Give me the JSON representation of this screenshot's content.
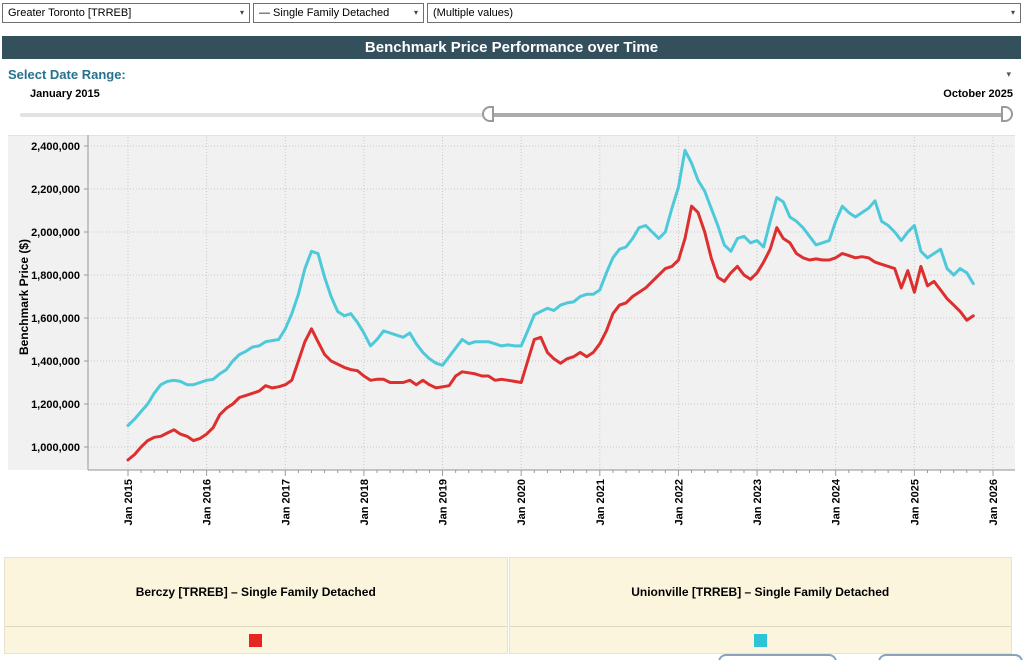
{
  "filters": {
    "region": "Greater Toronto [TRREB]",
    "property_type": "— Single Family Detached",
    "community": "(Multiple values)"
  },
  "icons": {
    "caret": "▾"
  },
  "header": {
    "title": "Benchmark Price Performance over Time"
  },
  "date_range": {
    "label": "Select Date Range:",
    "start": "January 2015",
    "end": "October 2025"
  },
  "legend": {
    "items": [
      {
        "label": "Berczy [TRREB] – Single Family Detached",
        "color": "#e42524"
      },
      {
        "label": "Unionville [TRREB] – Single Family Detached",
        "color": "#2ec4d8"
      }
    ]
  },
  "chart_data": {
    "type": "line",
    "title": "Benchmark Price Performance over Time",
    "xlabel": "",
    "ylabel": "Benchmark Price ($)",
    "grid": true,
    "legend_position": "bottom",
    "x_start": "2015-01",
    "x_end": "2025-10",
    "x_interval": "monthly",
    "xticks": [
      "Jan 2015",
      "Jan 2016",
      "Jan 2017",
      "Jan 2018",
      "Jan 2019",
      "Jan 2020",
      "Jan 2021",
      "Jan 2022",
      "Jan 2023",
      "Jan 2024",
      "Jan 2025",
      "Jan 2026"
    ],
    "yticks": [
      1000000,
      1200000,
      1400000,
      1600000,
      1800000,
      2000000,
      2200000,
      2400000
    ],
    "ylim": [
      900000,
      2450000
    ],
    "series": [
      {
        "name": "Berczy [TRREB] – Single Family Detached",
        "color": "#dd2f2e",
        "values": [
          940000,
          965000,
          1000000,
          1030000,
          1045000,
          1050000,
          1065000,
          1080000,
          1060000,
          1050000,
          1030000,
          1040000,
          1060000,
          1090000,
          1150000,
          1180000,
          1200000,
          1230000,
          1240000,
          1250000,
          1260000,
          1285000,
          1275000,
          1280000,
          1290000,
          1310000,
          1400000,
          1490000,
          1550000,
          1490000,
          1430000,
          1400000,
          1385000,
          1370000,
          1360000,
          1355000,
          1330000,
          1310000,
          1315000,
          1315000,
          1300000,
          1300000,
          1300000,
          1310000,
          1290000,
          1310000,
          1290000,
          1275000,
          1280000,
          1285000,
          1330000,
          1350000,
          1345000,
          1340000,
          1330000,
          1330000,
          1310000,
          1315000,
          1310000,
          1305000,
          1300000,
          1400000,
          1500000,
          1510000,
          1440000,
          1410000,
          1390000,
          1410000,
          1420000,
          1440000,
          1420000,
          1440000,
          1480000,
          1540000,
          1620000,
          1660000,
          1670000,
          1700000,
          1720000,
          1740000,
          1770000,
          1800000,
          1830000,
          1840000,
          1870000,
          1970000,
          2120000,
          2090000,
          2000000,
          1880000,
          1790000,
          1770000,
          1810000,
          1840000,
          1800000,
          1780000,
          1810000,
          1860000,
          1920000,
          2020000,
          1970000,
          1950000,
          1900000,
          1880000,
          1870000,
          1875000,
          1870000,
          1870000,
          1880000,
          1900000,
          1890000,
          1880000,
          1885000,
          1880000,
          1860000,
          1850000,
          1840000,
          1830000,
          1740000,
          1820000,
          1720000,
          1840000,
          1750000,
          1770000,
          1730000,
          1690000,
          1660000,
          1630000,
          1590000,
          1610000
        ]
      },
      {
        "name": "Unionville [TRREB] – Single Family Detached",
        "color": "#4ec9da",
        "values": [
          1100000,
          1130000,
          1165000,
          1200000,
          1250000,
          1290000,
          1305000,
          1310000,
          1305000,
          1290000,
          1290000,
          1300000,
          1310000,
          1315000,
          1340000,
          1360000,
          1400000,
          1430000,
          1445000,
          1465000,
          1470000,
          1490000,
          1495000,
          1500000,
          1550000,
          1620000,
          1710000,
          1830000,
          1910000,
          1900000,
          1790000,
          1700000,
          1630000,
          1610000,
          1620000,
          1580000,
          1530000,
          1470000,
          1500000,
          1540000,
          1530000,
          1520000,
          1510000,
          1530000,
          1480000,
          1440000,
          1410000,
          1390000,
          1380000,
          1420000,
          1460000,
          1500000,
          1480000,
          1490000,
          1490000,
          1490000,
          1480000,
          1470000,
          1475000,
          1470000,
          1470000,
          1540000,
          1615000,
          1630000,
          1645000,
          1635000,
          1660000,
          1670000,
          1675000,
          1700000,
          1710000,
          1710000,
          1730000,
          1810000,
          1880000,
          1920000,
          1930000,
          1970000,
          2020000,
          2030000,
          2000000,
          1970000,
          2000000,
          2110000,
          2210000,
          2380000,
          2320000,
          2240000,
          2190000,
          2110000,
          2030000,
          1940000,
          1910000,
          1970000,
          1980000,
          1950000,
          1960000,
          1930000,
          2050000,
          2160000,
          2140000,
          2070000,
          2050000,
          2020000,
          1980000,
          1940000,
          1950000,
          1960000,
          2050000,
          2120000,
          2090000,
          2070000,
          2090000,
          2110000,
          2145000,
          2050000,
          2030000,
          2000000,
          1960000,
          2000000,
          2030000,
          1910000,
          1880000,
          1900000,
          1920000,
          1830000,
          1800000,
          1830000,
          1810000,
          1760000
        ]
      }
    ]
  }
}
